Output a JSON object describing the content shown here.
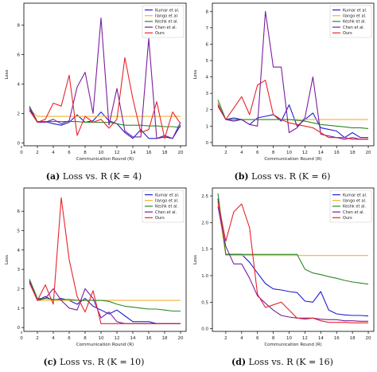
{
  "series_colors": {
    "Kumar et al.": "#1f1fd0",
    "Ilango et al.": "#f2b233",
    "Keshk et al.": "#2a8a2a",
    "Chen et al.": "#7a1fa0",
    "Ours": "#e8242a"
  },
  "chart_data": [
    {
      "type": "line",
      "caption_letter": "(a)",
      "caption_text": " Loss vs. R (K = 4)",
      "xlabel": "Communication Round (R)",
      "ylabel": "Loss",
      "xlim": [
        0.3,
        20.7
      ],
      "ylim": [
        -0.2,
        9.5
      ],
      "xticks": [
        0,
        2,
        4,
        6,
        8,
        10,
        12,
        14,
        16,
        18,
        20
      ],
      "yticks": [
        0,
        2,
        4,
        6,
        8
      ],
      "legend_position": "top-right",
      "x": [
        1,
        2,
        3,
        4,
        5,
        6,
        7,
        8,
        9,
        10,
        11,
        12,
        13,
        14,
        15,
        16,
        17,
        18,
        19,
        20
      ],
      "series": [
        {
          "name": "Kumar et al.",
          "values": [
            2.3,
            1.4,
            1.45,
            1.3,
            1.2,
            1.4,
            1.9,
            1.4,
            1.5,
            2.1,
            1.5,
            1.3,
            0.7,
            0.3,
            0.9,
            0.3,
            0.3,
            0.4,
            0.3,
            1.2
          ]
        },
        {
          "name": "Ilango et al.",
          "values": [
            2.3,
            1.8,
            1.8,
            1.8,
            1.8,
            1.8,
            1.8,
            1.8,
            1.8,
            1.8,
            1.8,
            1.8,
            1.8,
            1.8,
            1.8,
            1.8,
            1.8,
            1.8,
            1.8,
            1.8
          ]
        },
        {
          "name": "Keshk et al.",
          "values": [
            2.5,
            1.45,
            1.45,
            1.45,
            1.45,
            1.45,
            1.45,
            1.4,
            1.4,
            1.4,
            1.4,
            1.3,
            1.2,
            1.2,
            1.2,
            1.15,
            1.15,
            1.1,
            1.1,
            1.05
          ]
        },
        {
          "name": "Chen et al.",
          "values": [
            2.4,
            1.4,
            1.4,
            1.6,
            1.3,
            1.5,
            3.8,
            4.8,
            2.0,
            8.5,
            1.2,
            3.7,
            0.8,
            0.4,
            0.4,
            7.1,
            0.3,
            0.5,
            0.3,
            1.4
          ]
        },
        {
          "name": "Ours",
          "values": [
            2.2,
            1.4,
            1.6,
            2.7,
            2.5,
            4.6,
            0.5,
            1.8,
            1.4,
            1.6,
            1.0,
            1.6,
            5.8,
            3.0,
            0.7,
            0.9,
            2.8,
            0.3,
            2.1,
            1.3
          ]
        }
      ]
    },
    {
      "type": "line",
      "caption_letter": "(b)",
      "caption_text": " Loss vs. R (K = 6)",
      "xlabel": "Communication Round (R)",
      "ylabel": "Loss",
      "xlim": [
        0.3,
        20.7
      ],
      "ylim": [
        -0.2,
        8.5
      ],
      "xticks": [
        2,
        4,
        6,
        8,
        10,
        12,
        14,
        16,
        18,
        20
      ],
      "yticks": [
        0,
        1,
        2,
        3,
        4,
        5,
        6,
        7,
        8
      ],
      "legend_position": "top-right",
      "x": [
        1,
        2,
        3,
        4,
        5,
        6,
        7,
        8,
        9,
        10,
        11,
        12,
        13,
        14,
        15,
        16,
        17,
        18,
        19,
        20
      ],
      "series": [
        {
          "name": "Kumar et al.",
          "values": [
            2.4,
            1.4,
            1.5,
            1.4,
            1.1,
            1.5,
            1.6,
            1.7,
            1.3,
            2.3,
            1.0,
            1.4,
            1.8,
            0.9,
            0.8,
            0.7,
            0.3,
            0.6,
            0.3,
            0.3
          ]
        },
        {
          "name": "Ilango et al.",
          "values": [
            2.4,
            1.4,
            1.4,
            1.4,
            1.4,
            1.4,
            1.4,
            1.4,
            1.4,
            1.4,
            1.4,
            1.4,
            1.4,
            1.4,
            1.4,
            1.4,
            1.4,
            1.4,
            1.4,
            1.4
          ]
        },
        {
          "name": "Keshk et al.",
          "values": [
            2.6,
            1.4,
            1.4,
            1.4,
            1.4,
            1.4,
            1.4,
            1.4,
            1.4,
            1.4,
            1.35,
            1.3,
            1.2,
            1.1,
            1.05,
            1.0,
            0.95,
            0.9,
            0.9,
            0.85
          ]
        },
        {
          "name": "Chen et al.",
          "values": [
            2.3,
            1.4,
            1.3,
            1.4,
            1.1,
            1.0,
            8.0,
            4.6,
            4.6,
            0.6,
            0.9,
            1.5,
            4.0,
            0.5,
            0.4,
            0.3,
            0.2,
            0.3,
            0.2,
            0.2
          ]
        },
        {
          "name": "Ours",
          "values": [
            2.2,
            1.4,
            2.1,
            2.8,
            1.7,
            3.5,
            3.8,
            1.7,
            1.4,
            1.2,
            1.1,
            1.0,
            0.9,
            0.6,
            0.3,
            0.3,
            0.3,
            0.2,
            0.2,
            0.2
          ]
        }
      ]
    },
    {
      "type": "line",
      "caption_letter": "(c)",
      "caption_text": " Loss vs. R (K = 10)",
      "xlabel": "Communication Round (R)",
      "ylabel": "Loss",
      "xlim": [
        0.3,
        20.7
      ],
      "ylim": [
        -0.2,
        7.2
      ],
      "xticks": [
        0,
        2,
        4,
        6,
        8,
        10,
        12,
        14,
        16,
        18,
        20
      ],
      "yticks": [
        0,
        1,
        2,
        3,
        4,
        5,
        6
      ],
      "legend_position": "top-right",
      "x": [
        1,
        2,
        3,
        4,
        5,
        6,
        7,
        8,
        9,
        10,
        11,
        12,
        13,
        14,
        15,
        16,
        17,
        18,
        19,
        20
      ],
      "series": [
        {
          "name": "Kumar et al.",
          "values": [
            2.4,
            1.4,
            1.6,
            1.4,
            1.5,
            1.4,
            1.2,
            1.5,
            1.1,
            0.9,
            0.7,
            0.9,
            0.6,
            0.3,
            0.3,
            0.3,
            0.2,
            0.2,
            0.2,
            0.2
          ]
        },
        {
          "name": "Ilango et al.",
          "values": [
            2.4,
            1.4,
            1.4,
            1.4,
            1.4,
            1.4,
            1.4,
            1.4,
            1.4,
            1.4,
            1.4,
            1.4,
            1.4,
            1.4,
            1.4,
            1.4,
            1.4,
            1.4,
            1.4,
            1.4
          ]
        },
        {
          "name": "Keshk et al.",
          "values": [
            2.5,
            1.5,
            1.5,
            1.45,
            1.45,
            1.45,
            1.4,
            1.4,
            1.4,
            1.4,
            1.35,
            1.2,
            1.1,
            1.05,
            1.0,
            0.95,
            0.95,
            0.9,
            0.85,
            0.85
          ]
        },
        {
          "name": "Chen et al.",
          "values": [
            2.4,
            1.4,
            1.5,
            2.0,
            1.4,
            1.0,
            0.9,
            2.0,
            1.5,
            0.5,
            0.8,
            0.3,
            0.2,
            0.2,
            0.2,
            0.2,
            0.2,
            0.2,
            0.2,
            0.2
          ]
        },
        {
          "name": "Ours",
          "values": [
            2.3,
            1.4,
            2.2,
            1.2,
            6.7,
            3.5,
            1.6,
            0.8,
            1.9,
            0.2,
            0.2,
            0.2,
            0.2,
            0.2,
            0.2,
            0.2,
            0.2,
            0.2,
            0.2,
            0.2
          ]
        }
      ]
    },
    {
      "type": "line",
      "caption_letter": "(d)",
      "caption_text": " Loss vs. R (K = 16)",
      "xlabel": "Communication Round (R)",
      "ylabel": "Loss",
      "xlim": [
        0.3,
        20.7
      ],
      "ylim": [
        -0.05,
        2.65
      ],
      "xticks": [
        2,
        4,
        6,
        8,
        10,
        12,
        14,
        16,
        18,
        20
      ],
      "yticks": [
        0.0,
        0.5,
        1.0,
        1.5,
        2.0,
        2.5
      ],
      "tick_decimals": 1,
      "legend_position": "top-right",
      "x": [
        1,
        2,
        3,
        4,
        5,
        6,
        7,
        8,
        9,
        10,
        11,
        12,
        13,
        14,
        15,
        16,
        17,
        18,
        19,
        20
      ],
      "series": [
        {
          "name": "Kumar et al.",
          "values": [
            2.45,
            1.4,
            1.4,
            1.4,
            1.25,
            1.05,
            0.85,
            0.75,
            0.73,
            0.7,
            0.68,
            0.52,
            0.5,
            0.7,
            0.35,
            0.28,
            0.26,
            0.25,
            0.25,
            0.24
          ]
        },
        {
          "name": "Ilango et al.",
          "values": [
            2.35,
            1.38,
            1.38,
            1.38,
            1.38,
            1.38,
            1.38,
            1.38,
            1.38,
            1.38,
            1.38,
            1.38,
            1.38,
            1.38,
            1.38,
            1.38,
            1.38,
            1.38,
            1.38,
            1.38
          ]
        },
        {
          "name": "Keshk et al.",
          "values": [
            2.55,
            1.4,
            1.4,
            1.4,
            1.4,
            1.4,
            1.4,
            1.4,
            1.4,
            1.4,
            1.4,
            1.12,
            1.05,
            1.02,
            0.98,
            0.95,
            0.91,
            0.88,
            0.86,
            0.84
          ]
        },
        {
          "name": "Chen et al.",
          "values": [
            2.3,
            1.55,
            1.22,
            1.22,
            0.95,
            0.62,
            0.48,
            0.35,
            0.25,
            0.22,
            0.2,
            0.2,
            0.2,
            0.18,
            0.17,
            0.17,
            0.15,
            0.15,
            0.14,
            0.14
          ]
        },
        {
          "name": "Ours",
          "values": [
            2.4,
            1.65,
            2.2,
            2.35,
            1.9,
            0.65,
            0.4,
            0.45,
            0.5,
            0.35,
            0.2,
            0.18,
            0.2,
            0.15,
            0.12,
            0.12,
            0.12,
            0.11,
            0.11,
            0.11
          ]
        }
      ]
    }
  ]
}
